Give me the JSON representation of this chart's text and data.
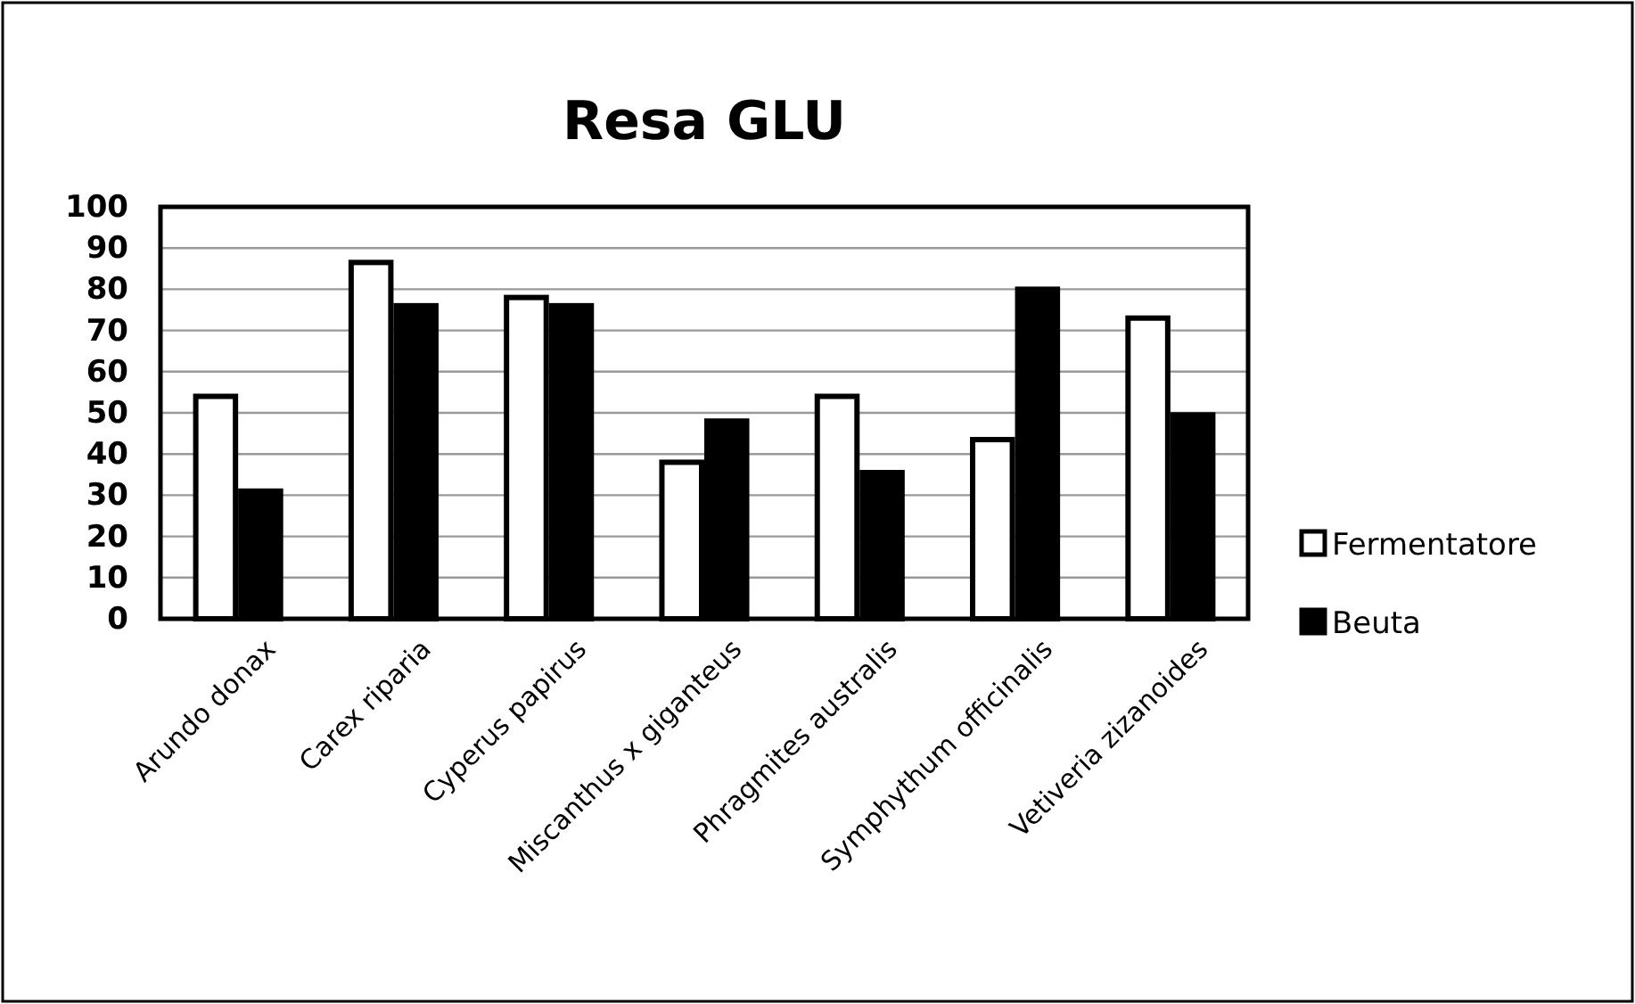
{
  "chart_data": {
    "type": "bar",
    "title": "Resa GLU",
    "categories": [
      "Arundo donax",
      "Carex riparia",
      "Cyperus  papirus",
      "Miscanthus x giganteus",
      "Phragmites australis",
      "Symphythum officinalis",
      "Vetiveria zizanoides"
    ],
    "series": [
      {
        "name": "Fermentatore",
        "color": "#ffffff",
        "values": [
          54,
          86.5,
          78,
          38,
          54,
          43.5,
          73
        ]
      },
      {
        "name": "Beuta",
        "color": "#000000",
        "values": [
          31,
          76,
          76,
          48,
          35.5,
          80,
          49.5
        ]
      }
    ],
    "ylim": [
      0,
      100
    ],
    "yticks": [
      0,
      10,
      20,
      30,
      40,
      50,
      60,
      70,
      80,
      90,
      100
    ],
    "grid": "y",
    "legend": "right"
  }
}
